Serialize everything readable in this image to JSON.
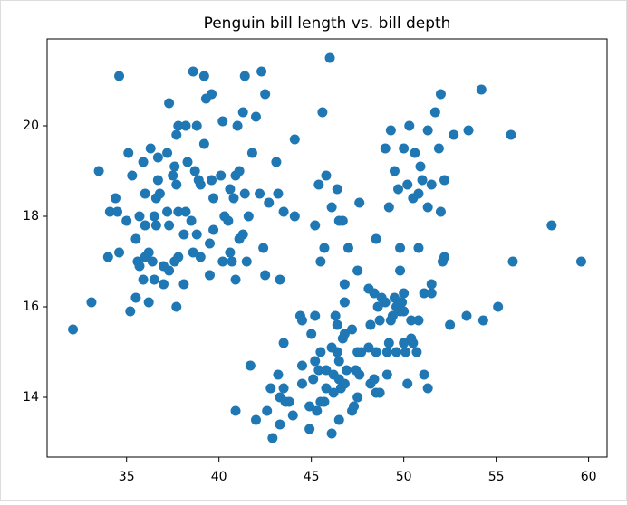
{
  "chart_data": {
    "type": "scatter",
    "title": "Penguin bill length vs. bill depth",
    "color": "#1f77b4",
    "x": [
      32.1,
      33.1,
      33.5,
      34.0,
      34.1,
      34.4,
      34.5,
      34.6,
      34.6,
      35.0,
      35.1,
      35.2,
      35.3,
      35.5,
      35.5,
      35.6,
      35.7,
      35.7,
      35.9,
      35.9,
      36.0,
      36.0,
      36.0,
      36.2,
      36.2,
      36.3,
      36.4,
      36.5,
      36.5,
      36.6,
      36.6,
      36.7,
      36.7,
      36.8,
      37.0,
      37.0,
      37.2,
      37.2,
      37.3,
      37.3,
      37.3,
      37.5,
      37.6,
      37.6,
      37.7,
      37.7,
      37.7,
      37.8,
      37.8,
      37.8,
      38.1,
      38.1,
      38.2,
      38.2,
      38.3,
      38.5,
      38.6,
      38.6,
      38.7,
      38.8,
      38.8,
      38.9,
      39.0,
      39.0,
      39.2,
      39.2,
      39.3,
      39.5,
      39.5,
      39.6,
      39.6,
      39.7,
      39.7,
      40.1,
      40.2,
      40.2,
      40.3,
      40.5,
      40.6,
      40.6,
      40.7,
      40.8,
      40.9,
      40.9,
      41.0,
      41.1,
      41.1,
      41.3,
      41.3,
      41.4,
      41.4,
      41.5,
      41.6,
      41.8,
      42.0,
      42.2,
      42.3,
      42.5,
      42.5,
      42.7,
      43.1,
      43.2,
      43.5,
      44.1,
      44.1,
      45.2,
      45.4,
      45.5,
      45.6,
      45.7,
      45.8,
      46.0,
      46.1,
      46.4,
      46.5,
      46.7,
      46.8,
      47.0,
      47.5,
      47.6,
      48.1,
      48.5,
      49.0,
      49.2,
      49.3,
      49.5,
      49.7,
      49.8,
      50.0,
      50.2,
      50.3,
      50.5,
      50.6,
      50.8,
      50.9,
      51.0,
      51.3,
      51.3,
      51.5,
      51.7,
      51.9,
      52.0,
      52.0,
      52.2,
      52.7,
      53.5,
      54.2,
      55.8,
      58.0,
      42.4,
      43.3,
      40.9,
      41.7,
      42.0,
      42.6,
      42.8,
      42.9,
      43.2,
      43.3,
      43.3,
      43.5,
      43.5,
      43.6,
      43.8,
      44.0,
      44.4,
      44.5,
      44.5,
      44.5,
      44.9,
      44.9,
      45.0,
      45.1,
      45.2,
      45.2,
      45.3,
      45.4,
      45.5,
      45.5,
      45.7,
      45.8,
      45.8,
      46.1,
      46.1,
      46.2,
      46.2,
      46.3,
      46.4,
      46.4,
      46.5,
      46.5,
      46.5,
      46.6,
      46.7,
      46.8,
      46.8,
      46.8,
      46.9,
      47.2,
      47.2,
      47.3,
      47.4,
      47.5,
      47.5,
      47.6,
      47.7,
      48.1,
      48.2,
      48.2,
      48.4,
      48.4,
      48.5,
      48.5,
      48.6,
      48.7,
      48.7,
      48.8,
      49.0,
      49.1,
      49.1,
      49.2,
      49.3,
      49.4,
      49.5,
      49.6,
      49.6,
      49.8,
      49.8,
      49.9,
      50.0,
      50.0,
      50.0,
      50.1,
      50.2,
      50.4,
      50.4,
      50.5,
      50.7,
      50.8,
      50.8,
      51.1,
      51.1,
      51.3,
      51.5,
      51.5,
      52.1,
      52.2,
      52.5,
      53.4,
      54.3,
      55.1,
      55.9,
      59.6
    ],
    "values": [
      15.5,
      16.1,
      19.0,
      17.1,
      18.1,
      18.4,
      18.1,
      21.1,
      17.2,
      17.9,
      19.4,
      15.9,
      18.9,
      16.2,
      17.5,
      17.0,
      16.9,
      18.0,
      16.6,
      19.2,
      17.1,
      18.5,
      17.8,
      16.1,
      17.2,
      19.5,
      17.0,
      16.6,
      18.0,
      17.8,
      18.4,
      18.8,
      19.3,
      18.5,
      16.9,
      16.5,
      18.1,
      19.4,
      16.8,
      17.8,
      20.5,
      18.9,
      17.0,
      19.1,
      16.0,
      18.7,
      19.8,
      17.1,
      18.1,
      20.0,
      16.5,
      17.6,
      18.1,
      20.0,
      19.2,
      17.9,
      17.2,
      21.2,
      19.0,
      17.6,
      20.0,
      18.8,
      17.1,
      18.7,
      19.6,
      21.1,
      20.6,
      16.7,
      17.4,
      18.8,
      20.7,
      17.7,
      18.4,
      18.9,
      17.0,
      20.1,
      18.0,
      17.9,
      17.2,
      18.6,
      17.0,
      18.4,
      16.6,
      18.9,
      20.0,
      17.5,
      19.0,
      17.6,
      20.3,
      18.5,
      21.1,
      17.0,
      18.0,
      19.4,
      20.2,
      18.5,
      21.2,
      16.7,
      20.7,
      18.3,
      19.2,
      18.5,
      18.1,
      19.7,
      18.0,
      17.8,
      18.7,
      17.0,
      20.3,
      17.3,
      18.9,
      21.5,
      18.2,
      18.6,
      17.9,
      17.9,
      16.5,
      17.3,
      16.8,
      18.3,
      16.4,
      17.5,
      19.5,
      18.2,
      19.9,
      19.0,
      18.6,
      17.3,
      19.5,
      18.7,
      20.0,
      18.4,
      19.4,
      18.5,
      19.1,
      18.8,
      18.2,
      19.9,
      18.7,
      20.3,
      19.5,
      18.1,
      20.7,
      18.8,
      19.8,
      19.9,
      20.8,
      19.8,
      17.8,
      17.3,
      16.6,
      13.7,
      14.7,
      13.5,
      13.7,
      14.2,
      13.1,
      14.5,
      13.4,
      14.0,
      14.2,
      15.2,
      13.9,
      13.9,
      13.6,
      15.8,
      14.3,
      14.7,
      15.7,
      13.3,
      13.8,
      15.4,
      14.4,
      14.8,
      15.8,
      13.7,
      14.6,
      13.9,
      15.0,
      13.9,
      14.2,
      14.6,
      13.2,
      15.1,
      14.1,
      14.5,
      15.8,
      15.0,
      15.6,
      13.5,
      14.4,
      14.8,
      14.2,
      15.3,
      14.3,
      15.4,
      16.1,
      14.6,
      13.7,
      15.5,
      13.8,
      14.6,
      14.0,
      15.0,
      14.5,
      15.0,
      15.1,
      14.3,
      15.6,
      14.4,
      16.3,
      14.1,
      15.0,
      16.0,
      14.1,
      15.7,
      16.2,
      16.1,
      14.5,
      15.0,
      15.2,
      15.7,
      15.8,
      16.2,
      15.0,
      16.0,
      15.9,
      16.8,
      16.1,
      15.2,
      15.9,
      16.3,
      15.0,
      14.3,
      15.3,
      15.7,
      15.2,
      15.0,
      15.7,
      17.3,
      14.5,
      16.3,
      14.2,
      16.3,
      16.5,
      17.0,
      17.1,
      15.6,
      15.8,
      15.7,
      16.0,
      17.0,
      17.0
    ],
    "xlim": [
      30.7,
      61.0
    ],
    "ylim": [
      12.68,
      21.92
    ],
    "xticks": [
      35,
      40,
      45,
      50,
      55,
      60
    ],
    "yticks": [
      14,
      16,
      18,
      20
    ]
  }
}
